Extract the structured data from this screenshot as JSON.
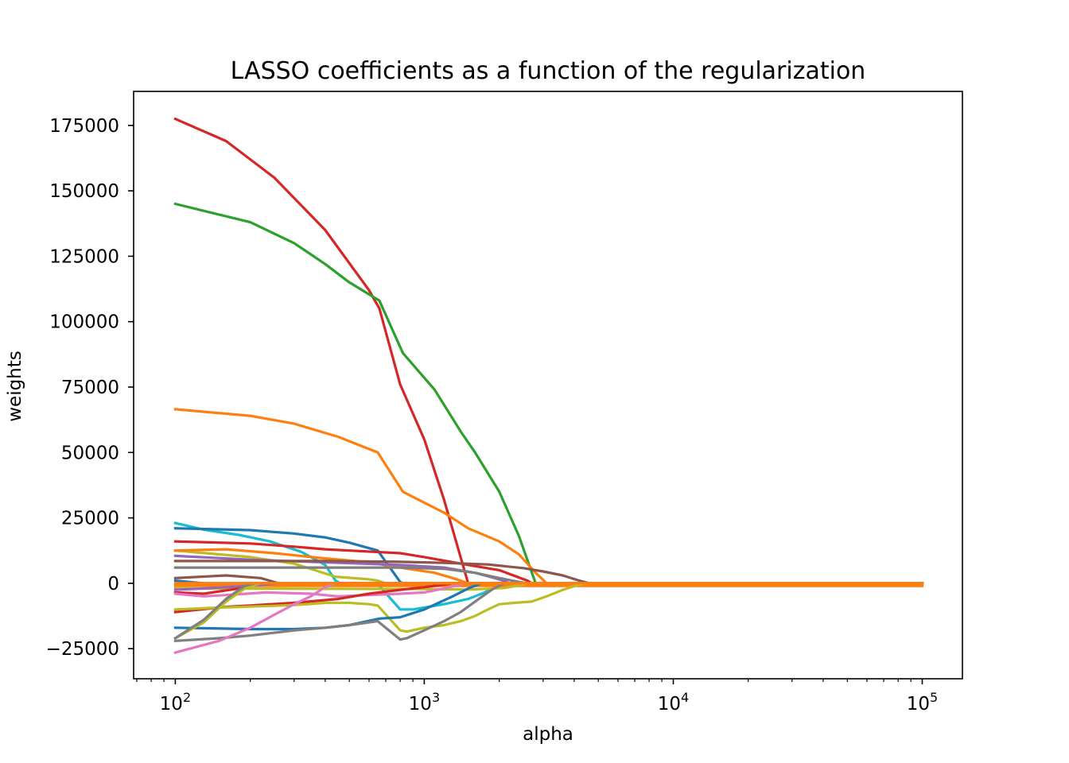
{
  "chart_data": {
    "type": "line",
    "title": "LASSO coefficients as a function of the regularization",
    "xlabel": "alpha",
    "ylabel": "weights",
    "xscale": "log",
    "xlim": [
      68,
      145000
    ],
    "ylim": [
      -36500,
      188000
    ],
    "grid": false,
    "legend": "none",
    "xticks": [
      {
        "value": 100,
        "base": "10",
        "exp": "2"
      },
      {
        "value": 1000,
        "base": "10",
        "exp": "3"
      },
      {
        "value": 10000,
        "base": "10",
        "exp": "4"
      },
      {
        "value": 100000,
        "base": "10",
        "exp": "5"
      }
    ],
    "yticks": [
      {
        "value": -25000,
        "label": "−25000"
      },
      {
        "value": 0,
        "label": "0"
      },
      {
        "value": 25000,
        "label": "25000"
      },
      {
        "value": 50000,
        "label": "50000"
      },
      {
        "value": 75000,
        "label": "75000"
      },
      {
        "value": 100000,
        "label": "100000"
      },
      {
        "value": 125000,
        "label": "125000"
      },
      {
        "value": 150000,
        "label": "150000"
      },
      {
        "value": 175000,
        "label": "175000"
      }
    ],
    "series": [
      {
        "color": "#d62728",
        "points": [
          [
            100,
            177500
          ],
          [
            160,
            169000
          ],
          [
            250,
            155000
          ],
          [
            400,
            135000
          ],
          [
            600,
            112000
          ],
          [
            660,
            105000
          ],
          [
            800,
            76000
          ],
          [
            1000,
            55000
          ],
          [
            1200,
            32000
          ],
          [
            1500,
            0
          ],
          [
            100000,
            0
          ]
        ]
      },
      {
        "color": "#2ca02c",
        "points": [
          [
            100,
            145000
          ],
          [
            200,
            138000
          ],
          [
            300,
            130000
          ],
          [
            400,
            122000
          ],
          [
            500,
            115000
          ],
          [
            660,
            108000
          ],
          [
            820,
            88000
          ],
          [
            1100,
            74000
          ],
          [
            1400,
            58000
          ],
          [
            1600,
            50000
          ],
          [
            2000,
            35000
          ],
          [
            2400,
            18000
          ],
          [
            2800,
            0
          ],
          [
            100000,
            0
          ]
        ]
      },
      {
        "color": "#ff7f0e",
        "points": [
          [
            100,
            66500
          ],
          [
            200,
            64000
          ],
          [
            300,
            61000
          ],
          [
            450,
            56000
          ],
          [
            650,
            50000
          ],
          [
            820,
            35000
          ],
          [
            900,
            33000
          ],
          [
            1200,
            27000
          ],
          [
            1500,
            21000
          ],
          [
            2000,
            16000
          ],
          [
            2400,
            11000
          ],
          [
            2800,
            4000
          ],
          [
            3100,
            0
          ],
          [
            100000,
            0
          ]
        ]
      },
      {
        "color": "#17becf",
        "points": [
          [
            100,
            23000
          ],
          [
            130,
            20500
          ],
          [
            180,
            18500
          ],
          [
            240,
            16000
          ],
          [
            320,
            12000
          ],
          [
            400,
            7000
          ],
          [
            440,
            1000
          ],
          [
            460,
            0
          ],
          [
            600,
            0
          ],
          [
            660,
            -1000
          ],
          [
            800,
            -10000
          ],
          [
            900,
            -10000
          ],
          [
            1200,
            -8000
          ],
          [
            1500,
            -6000
          ],
          [
            1700,
            -4000
          ],
          [
            2000,
            -1000
          ],
          [
            2100,
            0
          ],
          [
            100000,
            0
          ]
        ]
      },
      {
        "color": "#1f77b4",
        "points": [
          [
            100,
            21000
          ],
          [
            200,
            20300
          ],
          [
            300,
            19000
          ],
          [
            400,
            17500
          ],
          [
            500,
            15500
          ],
          [
            650,
            12500
          ],
          [
            800,
            500
          ],
          [
            820,
            0
          ],
          [
            100000,
            0
          ]
        ]
      },
      {
        "color": "#d62728",
        "points": [
          [
            100,
            16000
          ],
          [
            200,
            15200
          ],
          [
            300,
            14000
          ],
          [
            400,
            13000
          ],
          [
            500,
            12500
          ],
          [
            800,
            11500
          ],
          [
            1000,
            10000
          ],
          [
            1500,
            7000
          ],
          [
            2000,
            5000
          ],
          [
            2600,
            1000
          ],
          [
            2700,
            0
          ],
          [
            100000,
            0
          ]
        ]
      },
      {
        "color": "#bcbd22",
        "points": [
          [
            100,
            12500
          ],
          [
            200,
            10000
          ],
          [
            300,
            7500
          ],
          [
            440,
            2500
          ],
          [
            600,
            1500
          ],
          [
            650,
            1000
          ],
          [
            700,
            0
          ],
          [
            100000,
            0
          ]
        ]
      },
      {
        "color": "#ff7f0e",
        "points": [
          [
            100,
            12500
          ],
          [
            160,
            13000
          ],
          [
            250,
            11500
          ],
          [
            400,
            9500
          ],
          [
            600,
            8000
          ],
          [
            800,
            6000
          ],
          [
            1100,
            4000
          ],
          [
            1300,
            2000
          ],
          [
            1500,
            0
          ],
          [
            100000,
            0
          ]
        ]
      },
      {
        "color": "#9467bd",
        "points": [
          [
            100,
            10500
          ],
          [
            200,
            9000
          ],
          [
            400,
            8000
          ],
          [
            800,
            7000
          ],
          [
            1200,
            6000
          ],
          [
            1600,
            4000
          ],
          [
            2000,
            1500
          ],
          [
            2200,
            0
          ],
          [
            100000,
            0
          ]
        ]
      },
      {
        "color": "#8c564b",
        "points": [
          [
            100,
            8500
          ],
          [
            400,
            8500
          ],
          [
            800,
            8200
          ],
          [
            1200,
            7800
          ],
          [
            1800,
            7200
          ],
          [
            2500,
            5800
          ],
          [
            3000,
            4500
          ],
          [
            3600,
            3000
          ],
          [
            4200,
            1000
          ],
          [
            4600,
            0
          ],
          [
            100000,
            0
          ]
        ]
      },
      {
        "color": "#7f7f7f",
        "points": [
          [
            100,
            6000
          ],
          [
            400,
            6000
          ],
          [
            800,
            6000
          ],
          [
            1200,
            5500
          ],
          [
            1600,
            4000
          ],
          [
            2000,
            2000
          ],
          [
            2400,
            500
          ],
          [
            2600,
            0
          ],
          [
            100000,
            0
          ]
        ]
      },
      {
        "color": "#8c564b",
        "points": [
          [
            100,
            2000
          ],
          [
            160,
            3000
          ],
          [
            220,
            2000
          ],
          [
            260,
            0
          ],
          [
            100000,
            0
          ]
        ]
      },
      {
        "color": "#1f77b4",
        "points": [
          [
            100,
            1000
          ],
          [
            130,
            0
          ],
          [
            100000,
            0
          ]
        ]
      },
      {
        "color": "#ff7f0e",
        "points": [
          [
            100,
            -1000
          ],
          [
            100000,
            -1000
          ]
        ]
      },
      {
        "color": "#bcbd22",
        "points": [
          [
            100,
            -2000
          ],
          [
            1000,
            -2200
          ],
          [
            1500,
            -2400
          ],
          [
            2100,
            -1800
          ],
          [
            2400,
            -800
          ],
          [
            2600,
            0
          ],
          [
            100000,
            0
          ]
        ]
      },
      {
        "color": "#9467bd",
        "points": [
          [
            100,
            -2500
          ],
          [
            130,
            -2000
          ],
          [
            200,
            -1000
          ],
          [
            260,
            0
          ],
          [
            100000,
            0
          ]
        ]
      },
      {
        "color": "#d62728",
        "points": [
          [
            100,
            -3500
          ],
          [
            130,
            -4000
          ],
          [
            180,
            -2000
          ],
          [
            220,
            0
          ],
          [
            100000,
            0
          ]
        ]
      },
      {
        "color": "#e377c2",
        "points": [
          [
            100,
            -4000
          ],
          [
            130,
            -5000
          ],
          [
            160,
            -4500
          ],
          [
            230,
            -3500
          ],
          [
            350,
            -4000
          ],
          [
            450,
            -5000
          ],
          [
            600,
            -4500
          ],
          [
            800,
            -4000
          ],
          [
            1000,
            -3500
          ],
          [
            1200,
            -2000
          ],
          [
            1400,
            -500
          ],
          [
            1500,
            0
          ],
          [
            100000,
            0
          ]
        ]
      },
      {
        "color": "#d62728",
        "points": [
          [
            100,
            -11000
          ],
          [
            160,
            -9000
          ],
          [
            200,
            -8500
          ],
          [
            300,
            -7500
          ],
          [
            450,
            -6000
          ],
          [
            600,
            -4000
          ],
          [
            800,
            -2500
          ],
          [
            1000,
            -1500
          ],
          [
            1200,
            -500
          ],
          [
            1300,
            0
          ],
          [
            100000,
            0
          ]
        ]
      },
      {
        "color": "#bcbd22",
        "points": [
          [
            100,
            -10000
          ],
          [
            160,
            -9200
          ],
          [
            250,
            -8600
          ],
          [
            320,
            -8200
          ],
          [
            400,
            -7500
          ],
          [
            500,
            -7500
          ],
          [
            600,
            -8000
          ],
          [
            650,
            -8500
          ],
          [
            800,
            -18000
          ],
          [
            850,
            -18500
          ],
          [
            1000,
            -17000
          ],
          [
            1200,
            -16000
          ],
          [
            1400,
            -14500
          ],
          [
            1600,
            -12500
          ],
          [
            1800,
            -10000
          ],
          [
            2000,
            -8000
          ],
          [
            2300,
            -7500
          ],
          [
            2700,
            -7000
          ],
          [
            3100,
            -5000
          ],
          [
            3600,
            -2500
          ],
          [
            4200,
            -500
          ],
          [
            4500,
            0
          ],
          [
            100000,
            0
          ]
        ]
      },
      {
        "color": "#1f77b4",
        "points": [
          [
            100,
            -17000
          ],
          [
            200,
            -17500
          ],
          [
            300,
            -17500
          ],
          [
            400,
            -17000
          ],
          [
            500,
            -16000
          ],
          [
            660,
            -13500
          ],
          [
            800,
            -13000
          ],
          [
            1000,
            -10000
          ],
          [
            1300,
            -5000
          ],
          [
            1500,
            -2000
          ],
          [
            1700,
            0
          ],
          [
            100000,
            0
          ]
        ]
      },
      {
        "color": "#7f7f7f",
        "points": [
          [
            100,
            -22000
          ],
          [
            150,
            -21000
          ],
          [
            200,
            -20000
          ],
          [
            300,
            -18000
          ],
          [
            400,
            -17000
          ],
          [
            500,
            -16000
          ],
          [
            650,
            -14500
          ],
          [
            800,
            -21500
          ],
          [
            850,
            -21000
          ],
          [
            1000,
            -18000
          ],
          [
            1200,
            -14500
          ],
          [
            1400,
            -11000
          ],
          [
            1600,
            -7000
          ],
          [
            1800,
            -3500
          ],
          [
            1900,
            -2000
          ],
          [
            2100,
            0
          ],
          [
            100000,
            0
          ]
        ]
      },
      {
        "color": "#bcbd22",
        "points": [
          [
            100,
            -21000
          ],
          [
            130,
            -15000
          ],
          [
            160,
            -7000
          ],
          [
            190,
            -2000
          ],
          [
            220,
            0
          ],
          [
            100000,
            0
          ]
        ]
      },
      {
        "color": "#e377c2",
        "points": [
          [
            100,
            -26500
          ],
          [
            150,
            -22000
          ],
          [
            200,
            -17000
          ],
          [
            250,
            -12000
          ],
          [
            300,
            -8000
          ],
          [
            350,
            -5000
          ],
          [
            400,
            -1500
          ],
          [
            440,
            0
          ],
          [
            100000,
            0
          ]
        ]
      },
      {
        "color": "#7f7f7f",
        "points": [
          [
            100,
            -21000
          ],
          [
            130,
            -14000
          ],
          [
            160,
            -6000
          ],
          [
            190,
            -1000
          ],
          [
            210,
            0
          ],
          [
            100000,
            0
          ]
        ]
      },
      {
        "color": "#ff7f0e",
        "points": [
          [
            100,
            0
          ],
          [
            100000,
            0
          ]
        ]
      }
    ]
  }
}
